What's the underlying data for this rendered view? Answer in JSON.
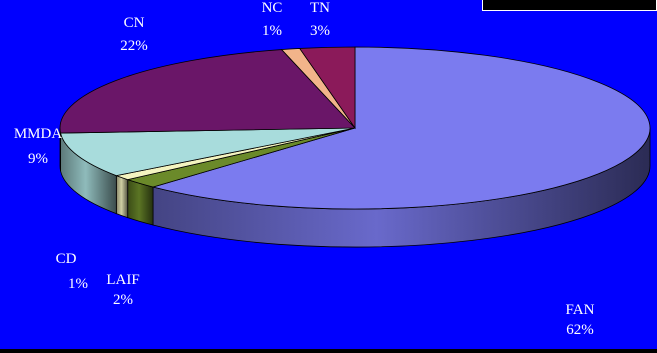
{
  "chart_data": {
    "type": "pie",
    "title": "",
    "slices": [
      {
        "label": "FAN",
        "percent_label": "62%",
        "value": 62,
        "color": "#7b7bef"
      },
      {
        "label": "LAIF",
        "percent_label": "2%",
        "value": 2,
        "color": "#6b8a2a"
      },
      {
        "label": "CD",
        "percent_label": "1%",
        "value": 1,
        "color": "#f4f4c0"
      },
      {
        "label": "MMDA",
        "percent_label": "9%",
        "value": 9,
        "color": "#a8dcdc"
      },
      {
        "label": "CN",
        "percent_label": "22%",
        "value": 22,
        "color": "#6a1668"
      },
      {
        "label": "NC",
        "percent_label": "1%",
        "value": 1,
        "color": "#f2b48a"
      },
      {
        "label": "TN",
        "percent_label": "3%",
        "value": 3,
        "color": "#8b1a5a"
      }
    ],
    "legend": "none",
    "style": "3d-exploded-none"
  },
  "colors": {
    "background": "#0000ff",
    "label_text": "#ffffff"
  }
}
